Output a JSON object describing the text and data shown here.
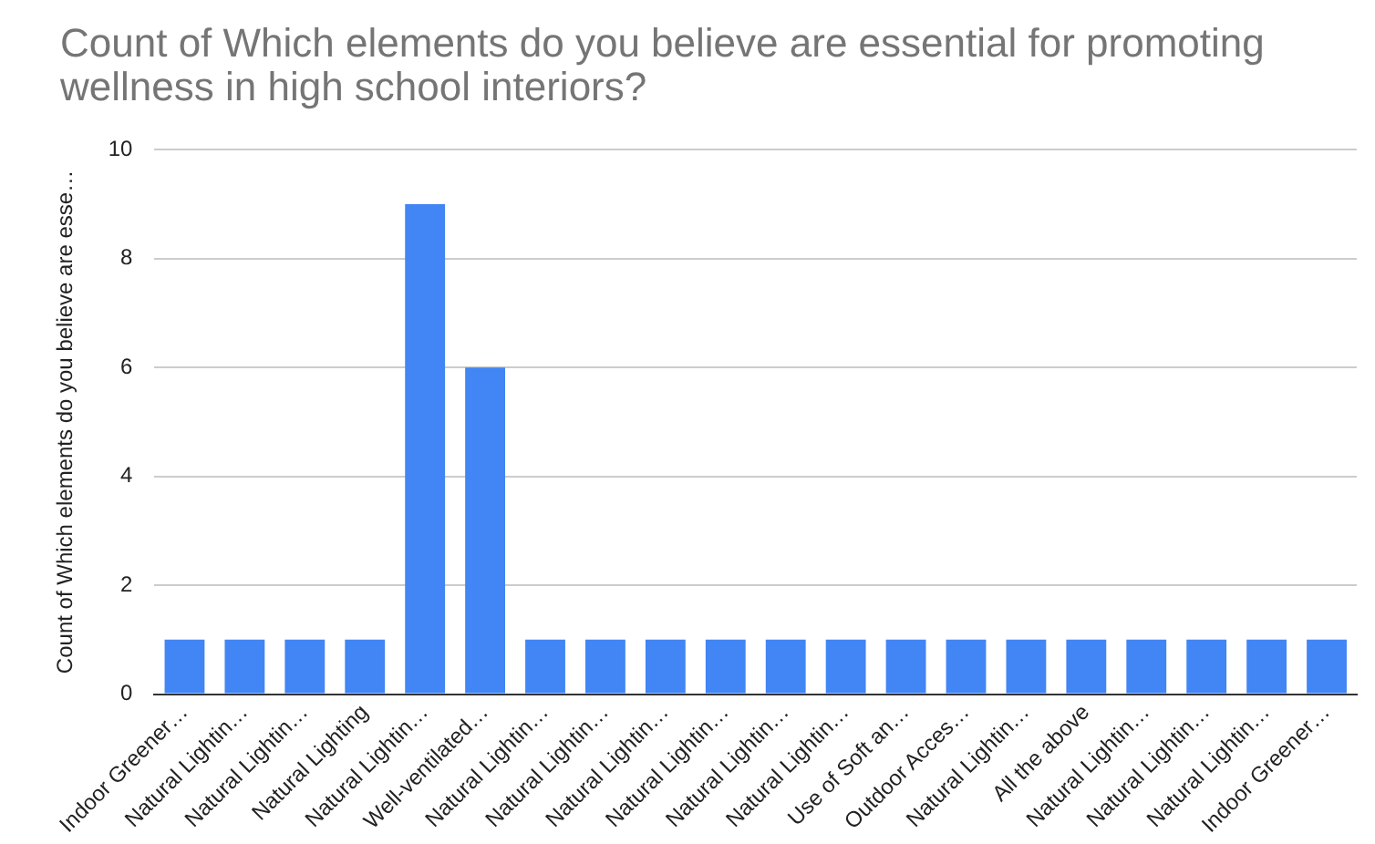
{
  "chart_data": {
    "type": "bar",
    "title": "Count of Which elements do you believe are essential for promoting wellness in high school interiors?",
    "ylabel": "Count of Which elements do you believe are esse…",
    "categories": [
      "Indoor Greener…",
      "Natural Lightin…",
      "Natural Lightin…",
      "Natural Lighting",
      "Natural Lightin…",
      "Well-ventilated…",
      "Natural Lightin…",
      "Natural Lightin…",
      "Natural Lightin…",
      "Natural Lightin…",
      "Natural Lightin…",
      "Natural Lightin…",
      "Use of Soft an…",
      "Outdoor Acces…",
      "Natural Lightin…",
      "All the above",
      "Natural Lightin…",
      "Natural Lightin…",
      "Natural Lightin…",
      "Indoor Greener…"
    ],
    "values": [
      1,
      1,
      1,
      1,
      9,
      6,
      1,
      1,
      1,
      1,
      1,
      1,
      1,
      1,
      1,
      1,
      1,
      1,
      1,
      1
    ],
    "color": "#4285f4",
    "ylim": [
      0,
      10
    ],
    "yticks": [
      0,
      2,
      4,
      6,
      8,
      10
    ],
    "grid": "y"
  }
}
